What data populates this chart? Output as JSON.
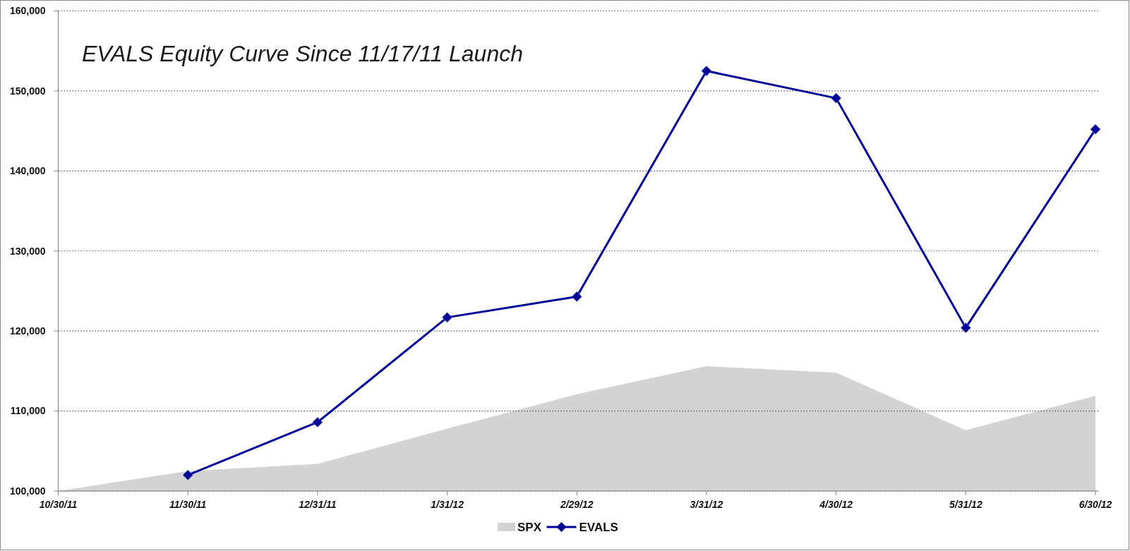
{
  "chart_data": {
    "type": "area",
    "title": "EVALS Equity Curve Since 11/17/11 Launch",
    "categories": [
      "10/30/11",
      "11/30/11",
      "12/31/11",
      "1/31/12",
      "2/29/12",
      "3/31/12",
      "4/30/12",
      "5/31/12",
      "6/30/12"
    ],
    "series": [
      {
        "name": "SPX",
        "color": "#d3d3d3",
        "values": [
          100000,
          102500,
          103400,
          107800,
          112100,
          115600,
          114800,
          107600,
          111900
        ]
      },
      {
        "name": "EVALS",
        "type": "line",
        "color": "#000099",
        "marker": "diamond",
        "values": [
          null,
          102000,
          108600,
          121700,
          124300,
          152500,
          149100,
          120400,
          145200
        ]
      }
    ],
    "ylim": [
      100000,
      160000
    ],
    "yticks": [
      {
        "value": 100000,
        "label": "100,000"
      },
      {
        "value": 110000,
        "label": "110,000"
      },
      {
        "value": 120000,
        "label": "120,000"
      },
      {
        "value": 130000,
        "label": "130,000"
      },
      {
        "value": 140000,
        "label": "140,000"
      },
      {
        "value": 150000,
        "label": "150,000"
      },
      {
        "value": 160000,
        "label": "160,000"
      }
    ],
    "grid": "y",
    "legend": "bottom"
  }
}
